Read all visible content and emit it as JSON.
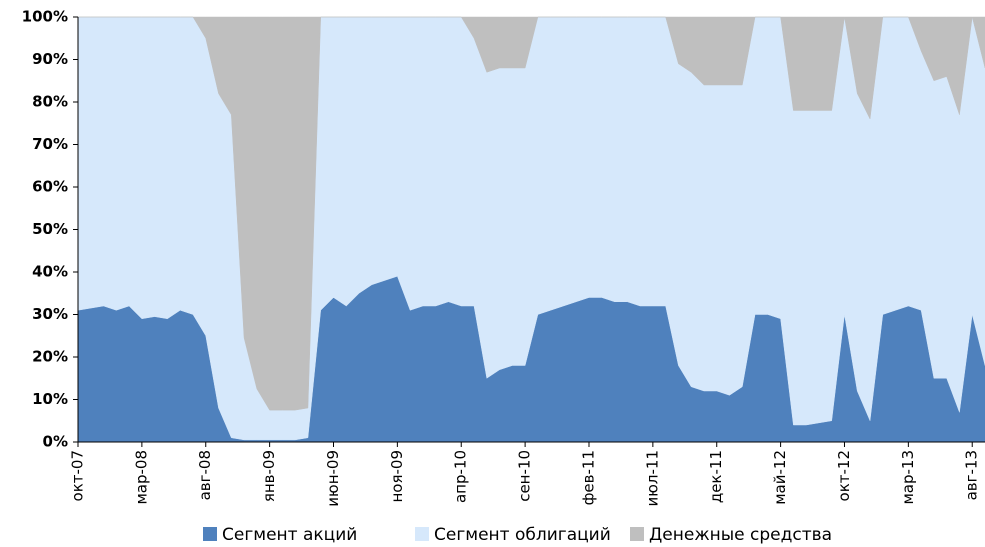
{
  "chart_data": {
    "type": "stacked_area",
    "categories": [
      "окт-07",
      null,
      null,
      null,
      null,
      "мар-08",
      null,
      null,
      null,
      null,
      "авг-08",
      null,
      null,
      null,
      null,
      "янв-09",
      null,
      null,
      null,
      null,
      "июн-09",
      null,
      null,
      null,
      null,
      "ноя-09",
      null,
      null,
      null,
      null,
      "апр-10",
      null,
      null,
      null,
      null,
      "сен-10",
      null,
      null,
      null,
      null,
      "фев-11",
      null,
      null,
      null,
      null,
      "июл-11",
      null,
      null,
      null,
      null,
      "дек-11",
      null,
      null,
      null,
      null,
      "май-12",
      null,
      null,
      null,
      null,
      "окт-12",
      null,
      null,
      null,
      null,
      "мар-13",
      null,
      null,
      null,
      null,
      "авг-13",
      null
    ],
    "series": [
      {
        "name": "Сегмент акций",
        "color": "#4f81bd",
        "values": [
          31,
          31.5,
          32,
          31,
          32,
          29,
          29.5,
          29,
          31,
          30,
          25,
          8,
          1,
          0.5,
          0.5,
          0.5,
          0.5,
          0.5,
          1,
          31,
          34,
          32,
          35,
          37,
          38,
          39,
          31,
          32,
          32,
          33,
          32,
          32,
          15,
          17,
          18,
          18,
          30,
          31,
          32,
          33,
          34,
          34,
          33,
          33,
          32,
          32,
          32,
          18,
          13,
          12,
          12,
          11,
          13,
          30,
          30,
          29,
          4,
          4,
          4.5,
          5,
          30,
          12,
          5,
          30,
          31,
          32,
          31,
          15,
          15,
          7,
          30,
          18
        ]
      },
      {
        "name": "Сегмент облигаций",
        "color": "#d6e8fb",
        "values": [
          69,
          68.5,
          68,
          69,
          68,
          71,
          70.5,
          71,
          69,
          70,
          70,
          74,
          76,
          24,
          12,
          7,
          7,
          7,
          7,
          69,
          66,
          68,
          65,
          63,
          62,
          61,
          69,
          68,
          68,
          67,
          68,
          63,
          72,
          71,
          70,
          70,
          70,
          69,
          68,
          67,
          66,
          66,
          67,
          67,
          68,
          68,
          68,
          71,
          74,
          72,
          72,
          73,
          71,
          70,
          70,
          71,
          74,
          74,
          73.5,
          73,
          70,
          70,
          71,
          70,
          69,
          68,
          61,
          70,
          71,
          70,
          70,
          70
        ]
      },
      {
        "name": "Денежные средства",
        "color": "#bfbfbf",
        "values": [
          0,
          0,
          0,
          0,
          0,
          0,
          0,
          0,
          0,
          0,
          5,
          18,
          23,
          75.5,
          87.5,
          92.5,
          92.5,
          92.5,
          92,
          0,
          0,
          0,
          0,
          0,
          0,
          0,
          0,
          0,
          0,
          0,
          0,
          5,
          13,
          12,
          12,
          12,
          0,
          0,
          0,
          0,
          0,
          0,
          0,
          0,
          0,
          0,
          0,
          11,
          13,
          16,
          16,
          16,
          16,
          0,
          0,
          0,
          22,
          22,
          22,
          22,
          0,
          18,
          24,
          0,
          0,
          0,
          8,
          15,
          14,
          23,
          0,
          12
        ]
      }
    ],
    "ylim": [
      0,
      100
    ],
    "yticks": [
      {
        "value": 0,
        "label": "0%"
      },
      {
        "value": 10,
        "label": "10%"
      },
      {
        "value": 20,
        "label": "20%"
      },
      {
        "value": 30,
        "label": "30%"
      },
      {
        "value": 40,
        "label": "40%"
      },
      {
        "value": 50,
        "label": "50%"
      },
      {
        "value": 60,
        "label": "60%"
      },
      {
        "value": 70,
        "label": "70%"
      },
      {
        "value": 80,
        "label": "80%"
      },
      {
        "value": 90,
        "label": "90%"
      },
      {
        "value": 100,
        "label": "100%"
      }
    ],
    "legend": "bottom"
  }
}
